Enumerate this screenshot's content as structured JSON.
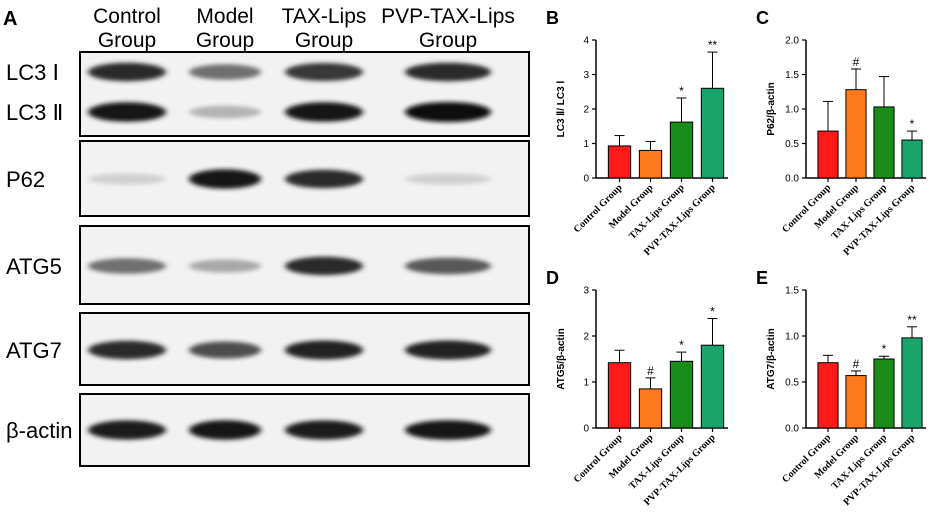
{
  "blot": {
    "panel_letter": "A",
    "columns": [
      {
        "line1": "Control",
        "line2": "Group"
      },
      {
        "line1": "Model",
        "line2": "Group"
      },
      {
        "line1": "TAX-Lips",
        "line2": "Group"
      },
      {
        "line1": "PVP-TAX-Lips",
        "line2": "Group"
      }
    ],
    "rows": [
      {
        "labels": [
          "LC3 Ⅰ",
          "LC3 Ⅱ"
        ],
        "bands": [
          [
            0.85,
            0.55,
            0.8,
            0.85
          ],
          [
            0.95,
            0.25,
            0.95,
            1.0
          ]
        ]
      },
      {
        "labels": [
          "P62"
        ],
        "bands": [
          [
            0.12,
            0.95,
            0.85,
            0.12
          ]
        ]
      },
      {
        "labels": [
          "ATG5"
        ],
        "bands": [
          [
            0.55,
            0.3,
            0.85,
            0.65
          ]
        ]
      },
      {
        "labels": [
          "ATG7"
        ],
        "bands": [
          [
            0.85,
            0.7,
            0.9,
            0.9
          ]
        ]
      },
      {
        "labels": [
          "β-actin"
        ],
        "bands": [
          [
            0.92,
            0.95,
            0.92,
            0.95
          ]
        ]
      }
    ]
  },
  "colors": [
    "#ff1a1a",
    "#ff7a1a",
    "#1a8c1a",
    "#1aa36b"
  ],
  "chart_data": [
    {
      "panel": "B",
      "type": "bar",
      "categories": [
        "Control Group",
        "Model Group",
        "TAX-Lips Group",
        "PVP-TAX-Lips Group"
      ],
      "values": [
        0.93,
        0.8,
        1.62,
        2.6
      ],
      "errors": [
        0.3,
        0.26,
        0.7,
        1.05
      ],
      "significance": [
        "",
        "",
        "*",
        "**"
      ],
      "ylabel": "LC3 Ⅱ/ LC3 Ⅰ",
      "ylim": [
        0,
        4
      ],
      "yticks": [
        "0",
        "1",
        "2",
        "3",
        "4"
      ]
    },
    {
      "panel": "C",
      "type": "bar",
      "categories": [
        "Control Group",
        "Model Group",
        "TAX-Lips Group",
        "PVP-TAX-Lips Group"
      ],
      "values": [
        0.68,
        1.28,
        1.03,
        0.55
      ],
      "errors": [
        0.43,
        0.3,
        0.44,
        0.13
      ],
      "significance": [
        "",
        "#",
        "",
        "*"
      ],
      "ylabel": "P62/β-actin",
      "ylim": [
        0,
        2
      ],
      "yticks": [
        "0.0",
        "0.5",
        "1.0",
        "1.5",
        "2.0"
      ]
    },
    {
      "panel": "D",
      "type": "bar",
      "categories": [
        "Control Group",
        "Model Group",
        "TAX-Lips Group",
        "PVP-TAX-Lips Group"
      ],
      "values": [
        1.42,
        0.85,
        1.45,
        1.8
      ],
      "errors": [
        0.27,
        0.24,
        0.2,
        0.58
      ],
      "significance": [
        "",
        "#",
        "*",
        "*"
      ],
      "ylabel": "ATG5/β-actin",
      "ylim": [
        0,
        3
      ],
      "yticks": [
        "0",
        "1",
        "2",
        "3"
      ]
    },
    {
      "panel": "E",
      "type": "bar",
      "categories": [
        "Control Group",
        "Model Group",
        "TAX-Lips Group",
        "PVP-TAX-Lips Group"
      ],
      "values": [
        0.71,
        0.57,
        0.75,
        0.98
      ],
      "errors": [
        0.08,
        0.05,
        0.03,
        0.12
      ],
      "significance": [
        "",
        "#",
        "*",
        "**"
      ],
      "ylabel": "ATG7/β-actin",
      "ylim": [
        0,
        1.5
      ],
      "yticks": [
        "0.0",
        "0.5",
        "1.0",
        "1.5"
      ]
    }
  ]
}
